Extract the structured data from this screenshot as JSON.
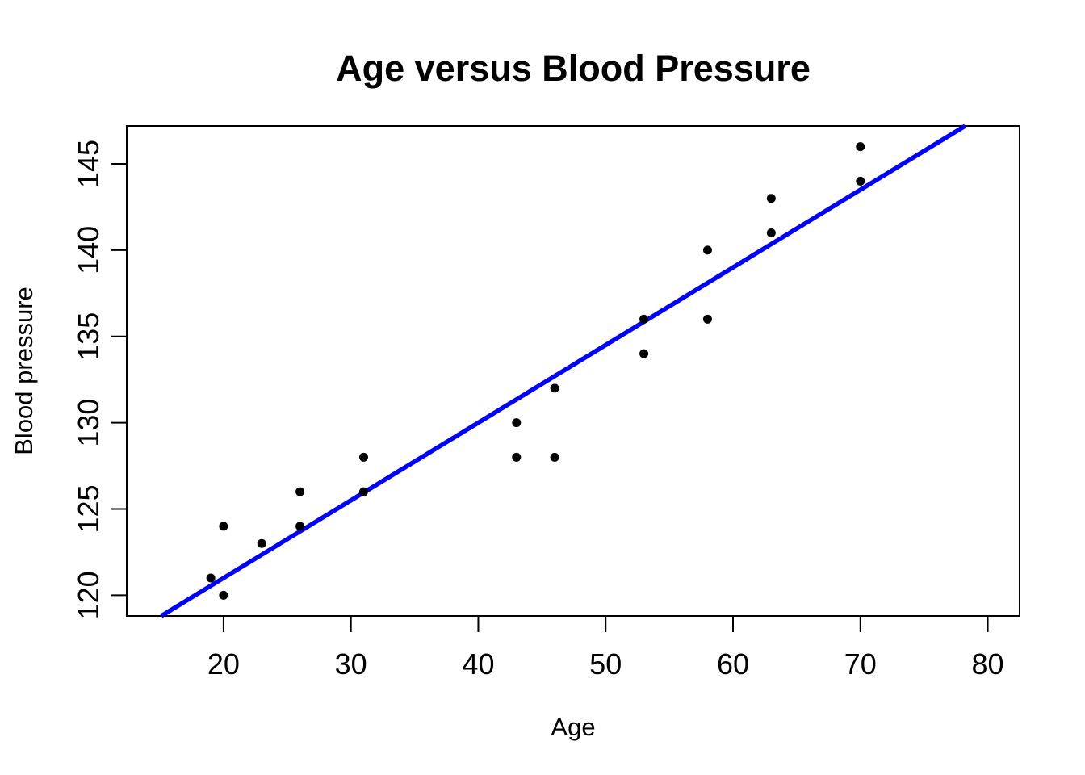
{
  "chart_data": {
    "type": "scatter",
    "title": "Age versus Blood Pressure",
    "xlabel": "Age",
    "ylabel": "Blood pressure",
    "xlim": [
      12.4,
      82.5
    ],
    "ylim": [
      118.8,
      147.2
    ],
    "x_ticks": [
      20,
      30,
      40,
      50,
      60,
      70,
      80
    ],
    "y_ticks": [
      120,
      125,
      130,
      135,
      140,
      145
    ],
    "grid": "off",
    "legend": "none",
    "point_color": "#000000",
    "point_radius": 5.5,
    "frame_color": "#000000",
    "points": [
      {
        "age": 19,
        "bp": 121
      },
      {
        "age": 20,
        "bp": 120
      },
      {
        "age": 20,
        "bp": 124
      },
      {
        "age": 23,
        "bp": 123
      },
      {
        "age": 26,
        "bp": 124
      },
      {
        "age": 26,
        "bp": 126
      },
      {
        "age": 31,
        "bp": 126
      },
      {
        "age": 31,
        "bp": 128
      },
      {
        "age": 43,
        "bp": 128
      },
      {
        "age": 43,
        "bp": 130
      },
      {
        "age": 46,
        "bp": 128
      },
      {
        "age": 46,
        "bp": 132
      },
      {
        "age": 53,
        "bp": 134
      },
      {
        "age": 53,
        "bp": 136
      },
      {
        "age": 58,
        "bp": 136
      },
      {
        "age": 58,
        "bp": 140
      },
      {
        "age": 63,
        "bp": 141
      },
      {
        "age": 63,
        "bp": 143
      },
      {
        "age": 70,
        "bp": 144
      },
      {
        "age": 70,
        "bp": 146
      }
    ],
    "regression_line": {
      "intercept": 112.0,
      "slope": 0.45,
      "color": "#0000ff",
      "width": 5.5
    }
  }
}
